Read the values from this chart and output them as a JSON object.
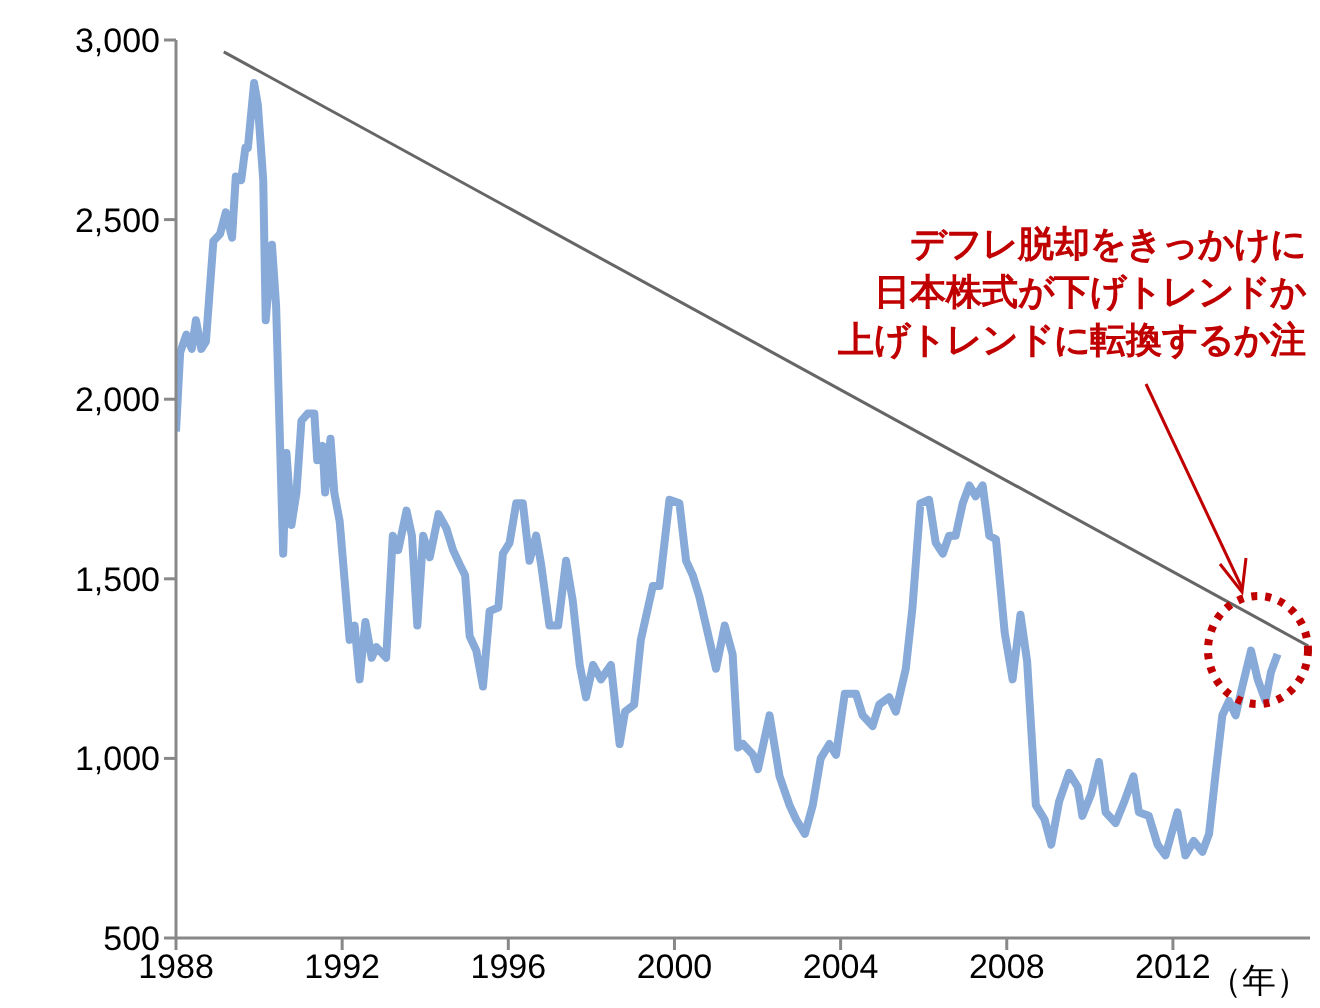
{
  "chart_data": {
    "type": "line",
    "xlabel": "（年）",
    "xlim": [
      1988,
      2015.3
    ],
    "xticks": [
      1988,
      1992,
      1996,
      2000,
      2004,
      2008,
      2012
    ],
    "ylim": [
      500,
      3000
    ],
    "yticks": [
      500,
      {
        "value": 1000,
        "label": "1,000"
      },
      {
        "value": 1500,
        "label": "1,500"
      },
      {
        "value": 2000,
        "label": "2,000"
      },
      {
        "value": 2500,
        "label": "2,500"
      },
      {
        "value": 3000,
        "label": "3,000"
      }
    ],
    "marker": "none",
    "line_style": "solid",
    "annotations": [
      "デフレ脱却をきっかけに",
      "日本株式が下げトレンドか",
      "上げトレンドに転換するか注"
    ],
    "series": [
      {
        "color": "#88aad8",
        "x": [
          1988.0,
          1988.1,
          1988.25,
          1988.38,
          1988.48,
          1988.61,
          1988.72,
          1988.9,
          1989.06,
          1989.2,
          1989.35,
          1989.44,
          1989.57,
          1989.67,
          1989.73,
          1989.88,
          1989.97,
          1990.1,
          1990.16,
          1990.31,
          1990.41,
          1990.58,
          1990.66,
          1990.78,
          1990.9,
          1991.02,
          1991.17,
          1991.33,
          1991.4,
          1991.53,
          1991.59,
          1991.72,
          1991.81,
          1991.94,
          1992.18,
          1992.3,
          1992.42,
          1992.56,
          1992.71,
          1992.82,
          1993.06,
          1993.22,
          1993.35,
          1993.55,
          1993.68,
          1993.81,
          1993.95,
          1994.11,
          1994.32,
          1994.51,
          1994.67,
          1994.83,
          1994.96,
          1995.07,
          1995.23,
          1995.39,
          1995.55,
          1995.76,
          1995.87,
          1996.03,
          1996.19,
          1996.35,
          1996.51,
          1996.67,
          1996.79,
          1996.99,
          1997.2,
          1997.39,
          1997.55,
          1997.72,
          1997.87,
          1998.04,
          1998.23,
          1998.47,
          1998.68,
          1998.81,
          1999.03,
          1999.19,
          1999.48,
          1999.64,
          1999.88,
          2000.12,
          2000.28,
          2000.44,
          2000.6,
          2000.76,
          2001.0,
          2001.21,
          2001.4,
          2001.53,
          2001.65,
          2001.89,
          2002.01,
          2002.29,
          2002.53,
          2002.77,
          2002.93,
          2003.14,
          2003.33,
          2003.52,
          2003.73,
          2003.89,
          2004.1,
          2004.37,
          2004.53,
          2004.77,
          2004.93,
          2005.17,
          2005.33,
          2005.57,
          2005.73,
          2005.92,
          2006.13,
          2006.29,
          2006.46,
          2006.61,
          2006.77,
          2006.94,
          2007.1,
          2007.25,
          2007.42,
          2007.58,
          2007.74,
          2007.95,
          2008.14,
          2008.33,
          2008.49,
          2008.7,
          2008.91,
          2009.07,
          2009.26,
          2009.5,
          2009.71,
          2009.82,
          2010.03,
          2010.22,
          2010.38,
          2010.62,
          2010.83,
          2011.05,
          2011.18,
          2011.42,
          2011.63,
          2011.82,
          2012.11,
          2012.3,
          2012.5,
          2012.71,
          2012.87,
          2013.03,
          2013.19,
          2013.35,
          2013.51,
          2013.67,
          2013.88,
          2014.04,
          2014.23,
          2014.36,
          2014.52
        ],
        "values": [
          1910,
          2130,
          2180,
          2140,
          2220,
          2140,
          2160,
          2440,
          2460,
          2520,
          2450,
          2620,
          2610,
          2700,
          2700,
          2880,
          2820,
          2610,
          2220,
          2430,
          2260,
          1570,
          1850,
          1650,
          1740,
          1940,
          1960,
          1960,
          1830,
          1870,
          1740,
          1890,
          1740,
          1660,
          1330,
          1370,
          1220,
          1380,
          1280,
          1310,
          1280,
          1620,
          1580,
          1690,
          1620,
          1370,
          1620,
          1560,
          1680,
          1640,
          1580,
          1540,
          1510,
          1340,
          1300,
          1200,
          1410,
          1420,
          1570,
          1600,
          1710,
          1710,
          1550,
          1620,
          1540,
          1370,
          1370,
          1550,
          1440,
          1260,
          1170,
          1260,
          1220,
          1260,
          1040,
          1130,
          1150,
          1330,
          1480,
          1480,
          1720,
          1710,
          1550,
          1510,
          1450,
          1370,
          1250,
          1370,
          1290,
          1030,
          1040,
          1010,
          970,
          1120,
          950,
          870,
          830,
          790,
          870,
          1000,
          1040,
          1010,
          1180,
          1180,
          1120,
          1090,
          1150,
          1170,
          1130,
          1250,
          1420,
          1710,
          1720,
          1600,
          1570,
          1620,
          1620,
          1710,
          1760,
          1730,
          1760,
          1620,
          1610,
          1350,
          1220,
          1400,
          1270,
          870,
          830,
          760,
          880,
          960,
          920,
          840,
          900,
          990,
          850,
          820,
          880,
          950,
          850,
          840,
          760,
          730,
          850,
          730,
          770,
          740,
          790,
          960,
          1120,
          1160,
          1120,
          1200,
          1300,
          1220,
          1160,
          1240,
          1290
        ]
      },
      {
        "color": "#666666",
        "x": [
          1989.15,
          2015.26
        ],
        "values": [
          2967,
          1313
        ]
      }
    ]
  }
}
